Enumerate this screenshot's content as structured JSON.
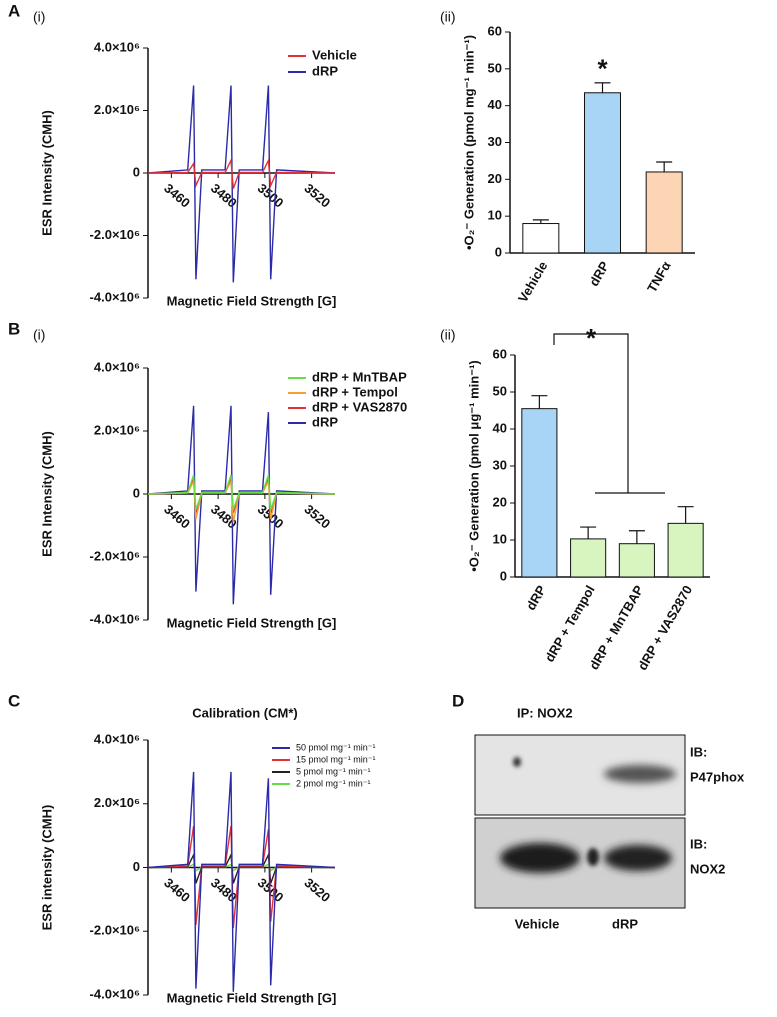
{
  "chart_data": [
    {
      "type": "line",
      "panel": "A",
      "sublabel": "(i)",
      "x_label": "Magnetic Field Strength [G]",
      "y_label": "ESR Intensity (CMH)",
      "x": [
        3450,
        3467,
        3469.5,
        3470.5,
        3473,
        3483,
        3485.5,
        3486.5,
        3489,
        3499,
        3501.5,
        3502.5,
        3505,
        3530
      ],
      "series": [
        {
          "name": "Vehicle",
          "color": "#e0303a",
          "values": [
            0,
            20000,
            300000,
            -400000,
            20000,
            20000,
            400000,
            -500000,
            20000,
            20000,
            400000,
            -400000,
            20000,
            0
          ]
        },
        {
          "name": "dRP",
          "color": "#2b2ba8",
          "values": [
            0,
            100000,
            2800000,
            -3400000,
            100000,
            100000,
            2800000,
            -3500000,
            100000,
            100000,
            2800000,
            -3400000,
            100000,
            0
          ]
        }
      ],
      "xlim": [
        3450,
        3530
      ],
      "xticks": [
        3460,
        3480,
        3500,
        3520
      ],
      "ylim": [
        -4000000,
        4000000
      ],
      "yticks": [
        {
          "value": 4000000,
          "label": "4.0×10⁶"
        },
        {
          "value": 2000000,
          "label": "2.0×10⁶"
        },
        0,
        {
          "value": -2000000,
          "label": "-2.0×10⁶"
        },
        {
          "value": -4000000,
          "label": "-4.0×10⁶"
        }
      ]
    },
    {
      "type": "bar",
      "sublabel": "(ii)",
      "annotation": "*",
      "y_label": "•O₂⁻ Generation (pmol mg⁻¹ min⁻¹)",
      "categories": [
        "Vehicle",
        "dRP",
        "TNFα"
      ],
      "values": [
        8,
        43.5,
        22
      ],
      "errors": [
        1,
        2.7,
        2.7
      ],
      "colors": [
        "#ffffff",
        "#a8d4f5",
        "#fcd5b5"
      ],
      "ylim": [
        0,
        60
      ],
      "yticks": [
        0,
        10,
        20,
        30,
        40,
        50,
        60
      ]
    },
    {
      "type": "line",
      "panel": "B",
      "sublabel": "(i)",
      "x_label": "Magnetic Field Strength [G]",
      "y_label": "ESR Intensity (CMH)",
      "x": [
        3450,
        3467,
        3469.5,
        3470.5,
        3473,
        3483,
        3485.5,
        3486.5,
        3489,
        3499,
        3501.5,
        3502.5,
        3505,
        3530
      ],
      "series": [
        {
          "name": "dRP + MnTBAP",
          "color": "#66dd44",
          "values": [
            0,
            50000,
            600000,
            -500000,
            50000,
            50000,
            600000,
            -500000,
            50000,
            50000,
            600000,
            -500000,
            50000,
            0
          ]
        },
        {
          "name": "dRP + Tempol",
          "color": "#f5a030",
          "values": [
            0,
            30000,
            400000,
            -800000,
            30000,
            30000,
            400000,
            -900000,
            30000,
            30000,
            400000,
            -800000,
            30000,
            0
          ]
        },
        {
          "name": "dRP + VAS2870",
          "color": "#e0303a",
          "values": [
            0,
            40000,
            500000,
            -600000,
            40000,
            40000,
            500000,
            -600000,
            40000,
            40000,
            500000,
            -600000,
            40000,
            0
          ]
        },
        {
          "name": "dRP",
          "color": "#2b2ba8",
          "values": [
            0,
            100000,
            2800000,
            -3100000,
            100000,
            100000,
            2800000,
            -3500000,
            100000,
            100000,
            2600000,
            -3200000,
            100000,
            0
          ]
        }
      ],
      "xlim": [
        3450,
        3530
      ],
      "xticks": [
        3460,
        3480,
        3500,
        3520
      ],
      "ylim": [
        -4000000,
        4000000
      ],
      "yticks": [
        {
          "value": 4000000,
          "label": "4.0×10⁶"
        },
        {
          "value": 2000000,
          "label": "2.0×10⁶"
        },
        0,
        {
          "value": -2000000,
          "label": "-2.0×10⁶"
        },
        {
          "value": -4000000,
          "label": "-4.0×10⁶"
        }
      ]
    },
    {
      "type": "bar",
      "sublabel": "(ii)",
      "annotation": "*",
      "y_label": "•O₂⁻ Generation (pmol μg⁻¹ min⁻¹)",
      "categories": [
        "dRP",
        "dRP + Tempol",
        "dRP + MnTBAP",
        "dRP + VAS2870"
      ],
      "values": [
        45.5,
        10.3,
        9,
        14.5
      ],
      "errors": [
        3.5,
        3.2,
        3.5,
        4.5
      ],
      "colors": [
        "#a8d4f5",
        "#d8f5c0",
        "#d8f5c0",
        "#d8f5c0"
      ],
      "ylim": [
        0,
        60
      ],
      "yticks": [
        0,
        10,
        20,
        30,
        40,
        50,
        60
      ]
    },
    {
      "type": "line",
      "panel": "C",
      "title": "Calibration (CM*)",
      "x_label": "Magnetic Field Strength [G]",
      "y_label": "ESR intensity (CMH)",
      "x": [
        3450,
        3467,
        3469.5,
        3470.5,
        3473,
        3483,
        3485.5,
        3486.5,
        3489,
        3499,
        3501.5,
        3502.5,
        3505,
        3530
      ],
      "series": [
        {
          "name": "50 pmol mg⁻¹ min⁻¹",
          "color": "#2b2ba8",
          "values": [
            0,
            100000,
            3000000,
            -3800000,
            100000,
            100000,
            3000000,
            -3900000,
            100000,
            100000,
            2800000,
            -3700000,
            100000,
            0
          ]
        },
        {
          "name": "15 pmol mg⁻¹ min⁻¹",
          "color": "#e0303a",
          "values": [
            0,
            50000,
            1300000,
            -1800000,
            50000,
            50000,
            1300000,
            -1900000,
            50000,
            50000,
            1200000,
            -1700000,
            50000,
            0
          ]
        },
        {
          "name": "5 pmol mg⁻¹ min⁻¹",
          "color": "#222222",
          "values": [
            0,
            20000,
            400000,
            -500000,
            20000,
            20000,
            400000,
            -500000,
            20000,
            20000,
            400000,
            -500000,
            20000,
            0
          ]
        },
        {
          "name": "2 pmol mg⁻¹ min⁻¹",
          "color": "#66dd44",
          "values": [
            0,
            10000,
            100000,
            -100000,
            10000,
            10000,
            100000,
            -100000,
            10000,
            10000,
            100000,
            -100000,
            10000,
            0
          ]
        }
      ],
      "xlim": [
        3450,
        3530
      ],
      "xticks": [
        3460,
        3480,
        3500,
        3520
      ],
      "ylim": [
        -4000000,
        4000000
      ],
      "yticks": [
        {
          "value": 4000000,
          "label": "4.0×10⁶"
        },
        {
          "value": 2000000,
          "label": "2.0×10⁶"
        },
        0,
        {
          "value": -2000000,
          "label": "-2.0×10⁶"
        },
        {
          "value": -4000000,
          "label": "-4.0×10⁶"
        }
      ]
    }
  ],
  "blot": {
    "panel": "D",
    "title": "IP: NOX2",
    "rows": [
      {
        "prefix": "IB:",
        "label": "P47phox"
      },
      {
        "prefix": "IB:",
        "label": "NOX2"
      }
    ],
    "lanes": [
      "Vehicle",
      "dRP"
    ]
  }
}
